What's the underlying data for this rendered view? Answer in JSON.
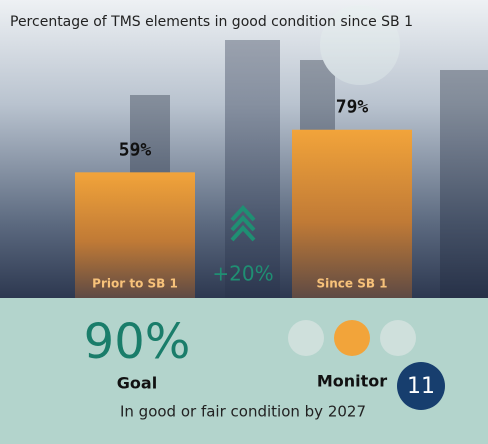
{
  "chart_data": {
    "type": "bar",
    "title": "Percentage of TMS elements in good condition since SB 1",
    "categories": [
      "Prior to SB 1",
      "Since SB 1"
    ],
    "values": [
      59,
      79
    ],
    "value_labels": [
      "59%",
      "79%"
    ],
    "color": "#f2a43a",
    "change": "+20%",
    "goal": {
      "value": "90%",
      "label": "Goal"
    },
    "status": "Monitor",
    "badge": "11",
    "footnote": "In good or fair condition by 2027"
  }
}
